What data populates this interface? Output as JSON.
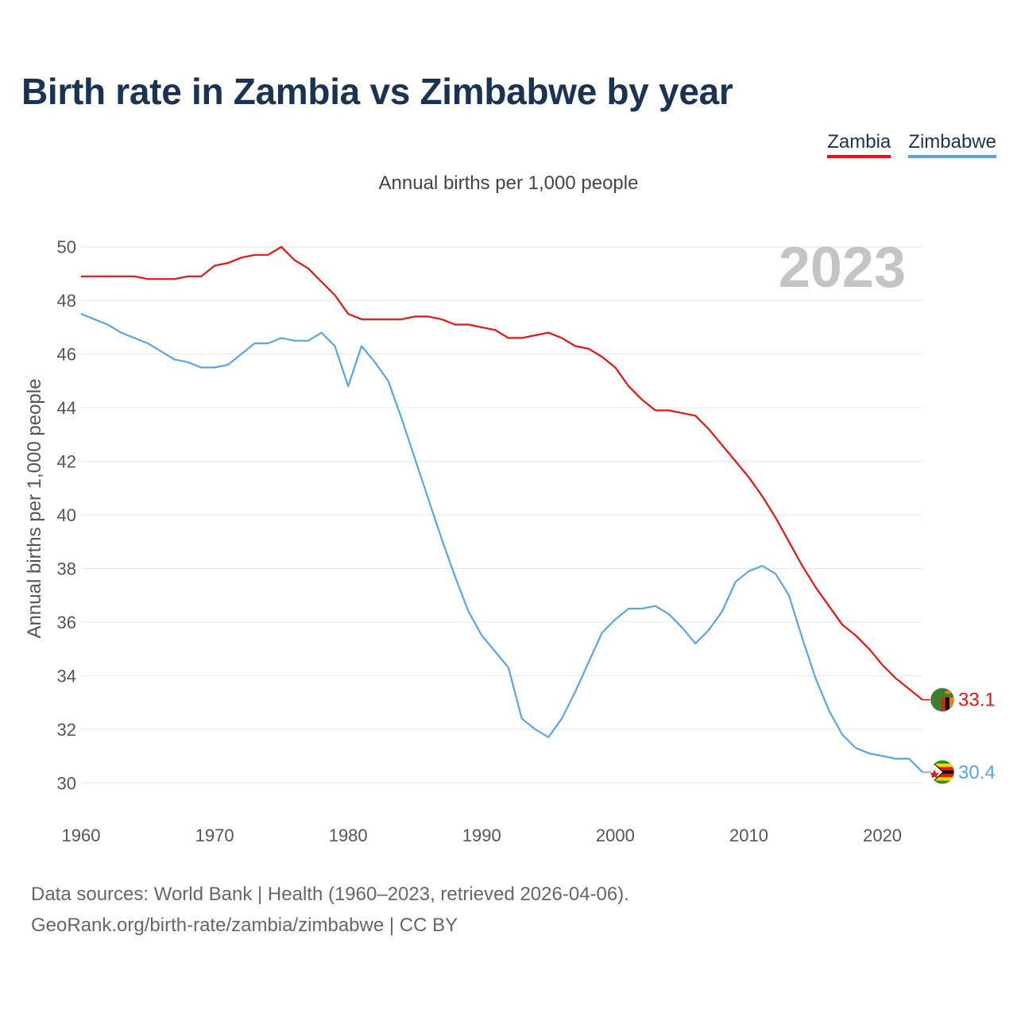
{
  "chart_data": {
    "type": "line",
    "title": "Birth rate in Zambia vs Zimbabwe by year",
    "subtitle": "Annual births per 1,000 people",
    "ylabel": "Annual births per 1,000 people",
    "xlabel": "",
    "year_label": "2023",
    "xlim": [
      1960,
      2023
    ],
    "ylim": [
      29,
      51
    ],
    "x_ticks": [
      1960,
      1970,
      1980,
      1990,
      2000,
      2010,
      2020
    ],
    "y_ticks": [
      30,
      32,
      34,
      36,
      38,
      40,
      42,
      44,
      46,
      48,
      50
    ],
    "x": [
      1960,
      1961,
      1962,
      1963,
      1964,
      1965,
      1966,
      1967,
      1968,
      1969,
      1970,
      1971,
      1972,
      1973,
      1974,
      1975,
      1976,
      1977,
      1978,
      1979,
      1980,
      1981,
      1982,
      1983,
      1984,
      1985,
      1986,
      1987,
      1988,
      1989,
      1990,
      1991,
      1992,
      1993,
      1994,
      1995,
      1996,
      1997,
      1998,
      1999,
      2000,
      2001,
      2002,
      2003,
      2004,
      2005,
      2006,
      2007,
      2008,
      2009,
      2010,
      2011,
      2012,
      2013,
      2014,
      2015,
      2016,
      2017,
      2018,
      2019,
      2020,
      2021,
      2022,
      2023
    ],
    "series": [
      {
        "name": "Zambia",
        "color": "#ee1111",
        "end_label": "33.1",
        "values": [
          48.9,
          48.9,
          48.9,
          48.9,
          48.9,
          48.8,
          48.8,
          48.8,
          48.9,
          48.9,
          49.3,
          49.4,
          49.6,
          49.7,
          49.7,
          50.0,
          49.5,
          49.2,
          48.7,
          48.2,
          47.5,
          47.3,
          47.3,
          47.3,
          47.3,
          47.4,
          47.4,
          47.3,
          47.1,
          47.1,
          47.0,
          46.9,
          46.6,
          46.6,
          46.7,
          46.8,
          46.6,
          46.3,
          46.2,
          45.9,
          45.5,
          44.8,
          44.3,
          43.9,
          43.9,
          43.8,
          43.7,
          43.2,
          42.6,
          42.0,
          41.4,
          40.7,
          39.9,
          39.0,
          38.1,
          37.3,
          36.6,
          35.9,
          35.5,
          35.0,
          34.4,
          33.9,
          33.5,
          33.1
        ]
      },
      {
        "name": "Zimbabwe",
        "color": "#5aa5e6",
        "end_label": "30.4",
        "values": [
          47.5,
          47.3,
          47.1,
          46.8,
          46.6,
          46.4,
          46.1,
          45.8,
          45.7,
          45.5,
          45.5,
          45.6,
          46.0,
          46.4,
          46.4,
          46.6,
          46.5,
          46.5,
          46.8,
          46.3,
          44.8,
          46.3,
          45.7,
          45.0,
          43.6,
          42.1,
          40.6,
          39.1,
          37.7,
          36.4,
          35.5,
          34.9,
          34.3,
          32.4,
          32.0,
          31.7,
          32.4,
          33.4,
          34.5,
          35.6,
          36.1,
          36.5,
          36.5,
          36.6,
          36.3,
          35.8,
          35.2,
          35.7,
          36.4,
          37.5,
          37.9,
          38.1,
          37.8,
          37.0,
          35.4,
          33.9,
          32.7,
          31.8,
          31.3,
          31.1,
          31.0,
          30.9,
          30.9,
          30.4
        ]
      }
    ]
  },
  "footer": {
    "line1": "Data sources: World Bank | Health (1960–2023, retrieved 2026-04-06).",
    "line2": "GeoRank.org/birth-rate/zambia/zimbabwe | CC BY"
  }
}
